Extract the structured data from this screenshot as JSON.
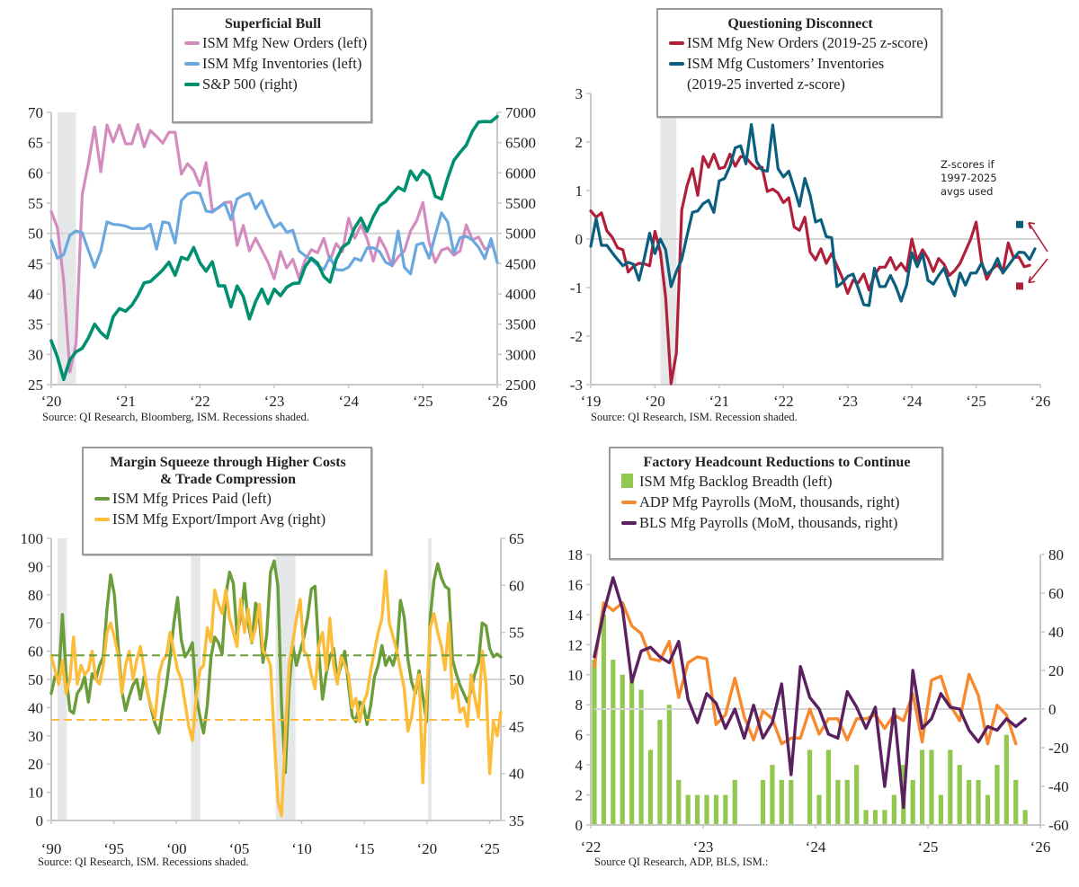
{
  "chart_data": [
    {
      "id": "superficial-bull",
      "type": "line",
      "title": "Superficial Bull",
      "source": "Source: QI Research, Bloomberg, ISM. Recessions shaded.",
      "x_start": "2020-01",
      "frequency": "monthly",
      "xticks": [
        "‘20",
        "‘21",
        "‘22",
        "‘23",
        "‘24",
        "‘25",
        "‘26"
      ],
      "x_range_years": [
        2020,
        2026
      ],
      "ylim_left": [
        25,
        70
      ],
      "yticks_left": [
        "25",
        "30",
        "35",
        "40",
        "45",
        "50",
        "55",
        "60",
        "65",
        "70"
      ],
      "ylim_right": [
        2500,
        7000
      ],
      "yticks_right": [
        "2500",
        "3000",
        "3500",
        "4000",
        "4500",
        "5000",
        "5500",
        "6000",
        "6500",
        "7000"
      ],
      "reference_line_left": 50,
      "recessions": [
        [
          "2020-02",
          "2020-04"
        ]
      ],
      "legend_position": "top-center",
      "series": [
        {
          "name": "ISM Mfg New Orders (left)",
          "axis": "left",
          "color": "#d48bc0",
          "values": [
            53.6,
            50.9,
            42.2,
            27.1,
            31.8,
            56.4,
            61.5,
            67.6,
            60.2,
            67.9,
            65.1,
            67.9,
            64.8,
            64.8,
            68.0,
            64.3,
            67.0,
            66.0,
            64.9,
            66.7,
            66.7,
            59.8,
            61.5,
            60.4,
            57.9,
            61.7,
            53.8,
            54.2,
            55.1,
            55.2,
            48.0,
            51.3,
            47.1,
            49.2,
            47.2,
            45.2,
            42.5,
            47.0,
            44.3,
            45.7,
            42.6,
            45.6,
            47.3,
            46.8,
            49.2,
            45.5,
            48.3,
            47.0,
            52.5,
            49.2,
            51.4,
            49.1,
            45.4,
            49.3,
            47.4,
            44.6,
            46.1,
            47.1,
            50.4,
            52.1,
            55.1,
            48.6,
            45.2,
            47.2,
            47.6,
            46.4,
            47.1,
            51.4,
            48.9,
            49.4,
            47.4,
            47.9
          ],
          "last_value": 47.9
        },
        {
          "name": "ISM Mfg Inventories (left)",
          "axis": "left",
          "color": "#6aa8df",
          "values": [
            48.8,
            45.9,
            46.5,
            49.7,
            50.4,
            50.1,
            47.2,
            44.4,
            47.1,
            51.9,
            51.5,
            51.4,
            51.2,
            50.8,
            50.8,
            50.8,
            51.5,
            47.4,
            51.9,
            51.7,
            48.4,
            55.4,
            56.5,
            56.8,
            56.6,
            53.7,
            53.5,
            54.3,
            55.0,
            52.3,
            55.7,
            56.3,
            56.6,
            54.1,
            55.4,
            53.0,
            51.0,
            51.7,
            50.2,
            50.5,
            47.1,
            46.3,
            45.7,
            44.7,
            44.0,
            46.1,
            44.0,
            43.9,
            44.4,
            45.9,
            45.5,
            47.6,
            47.6,
            47.0,
            45.2,
            44.7,
            50.4,
            44.4,
            43.3,
            48.1,
            48.4,
            45.9,
            49.7,
            53.4,
            51.9,
            46.7,
            49.3,
            49.5,
            48.9,
            47.7,
            45.8,
            49.1,
            45.2
          ],
          "last_value": 45.2
        },
        {
          "name": "S&P 500 (right)",
          "axis": "right",
          "color": "#009070",
          "values": [
            3225,
            2954,
            2585,
            2912,
            3044,
            3100,
            3271,
            3500,
            3363,
            3270,
            3622,
            3756,
            3714,
            3811,
            3973,
            4181,
            4204,
            4298,
            4395,
            4523,
            4308,
            4605,
            4567,
            4766,
            4516,
            4374,
            4530,
            4132,
            4132,
            3785,
            4130,
            3955,
            3586,
            3872,
            4080,
            3840,
            4077,
            3970,
            4109,
            4169,
            4180,
            4450,
            4589,
            4508,
            4288,
            4194,
            4568,
            4770,
            4846,
            5096,
            5254,
            5036,
            5278,
            5460,
            5522,
            5648,
            5762,
            5705,
            6032,
            5882,
            6040,
            5955,
            5612,
            5569,
            5912,
            6205,
            6339,
            6460,
            6688,
            6840,
            6849,
            6845,
            6930
          ],
          "last_value": 6930
        }
      ]
    },
    {
      "id": "questioning-disconnect",
      "type": "line",
      "title": "Questioning Disconnect",
      "source": "Source: QI Research, ISM. Recession shaded.",
      "x_start": "2019-01",
      "frequency": "monthly",
      "xticks": [
        "‘19",
        "‘20",
        "‘21",
        "‘22",
        "‘23",
        "‘24",
        "‘25",
        "‘26"
      ],
      "x_range_years": [
        2019,
        2026
      ],
      "ylim": [
        -3,
        3
      ],
      "yticks": [
        "-3",
        "-2",
        "-1",
        "0",
        "1",
        "2",
        "3"
      ],
      "reference_line": 0,
      "recessions": [
        [
          "2020-02",
          "2020-04"
        ]
      ],
      "legend_position": "top-center",
      "annotation": "Z-scores if 1997-2025 avgs used",
      "alt_markers": [
        {
          "series": "ISM Mfg Customers’ Inventories (2019-25 inverted z-score)",
          "value": 0.3,
          "color": "#0b5f7e"
        },
        {
          "series": "ISM Mfg New Orders (2019-25 z-score)",
          "value": -0.97,
          "color": "#b0203a"
        }
      ],
      "series": [
        {
          "name": "ISM Mfg New Orders (2019-25 z-score)",
          "color": "#b0203a",
          "values": [
            0.58,
            0.45,
            0.54,
            0.17,
            0.04,
            -0.18,
            -0.22,
            -0.68,
            -0.56,
            -0.5,
            -0.51,
            -0.55,
            0.16,
            -0.27,
            -1.2,
            -2.98,
            -2.35,
            0.6,
            1.1,
            1.45,
            0.9,
            1.7,
            1.48,
            1.75,
            1.45,
            1.48,
            1.75,
            1.5,
            1.7,
            1.68,
            1.55,
            1.45,
            1.48,
            0.98,
            1.03,
            0.95,
            0.75,
            0.85,
            0.25,
            0.18,
            0.45,
            -0.27,
            -0.43,
            -0.2,
            -0.5,
            -0.3,
            -0.55,
            -0.8,
            -1.12,
            -0.85,
            -0.9,
            -0.72,
            -1.05,
            -0.75,
            -0.58,
            -0.58,
            -0.38,
            -0.63,
            -0.5,
            -0.66,
            0.0,
            -0.45,
            -0.22,
            -0.4,
            -0.67,
            -0.4,
            -0.52,
            -0.75,
            -0.65,
            -0.5,
            -0.25,
            0.0,
            0.35,
            -0.46,
            -0.83,
            -0.62,
            -0.53,
            -0.68,
            -0.08,
            -0.38,
            -0.37,
            -0.57,
            -0.54
          ]
        },
        {
          "name": "ISM Mfg Customers’ Inventories (2019-25 inverted z-score)",
          "color": "#0b5f7e",
          "values": [
            -0.15,
            0.42,
            -0.13,
            -0.13,
            -0.28,
            -0.42,
            -0.55,
            -0.48,
            -0.52,
            -0.85,
            -0.4,
            0.12,
            -0.3,
            0.0,
            -0.22,
            -0.98,
            -0.67,
            -0.42,
            0.07,
            0.55,
            0.58,
            0.73,
            0.8,
            0.55,
            1.2,
            1.25,
            1.5,
            1.88,
            1.92,
            1.55,
            2.36,
            1.6,
            1.42,
            1.4,
            2.35,
            1.45,
            1.28,
            1.4,
            1.05,
            0.68,
            1.25,
            0.9,
            0.35,
            0.4,
            0.05,
            0.03,
            -0.98,
            -0.9,
            -0.77,
            -0.72,
            -1.02,
            -1.35,
            -1.37,
            -0.6,
            -0.98,
            -0.98,
            -0.75,
            -0.98,
            -1.28,
            -0.95,
            -0.28,
            -0.57,
            -0.3,
            -0.85,
            -0.93,
            -0.75,
            -0.6,
            -0.92,
            -1.17,
            -0.7,
            -0.95,
            -0.7,
            -0.7,
            -0.5,
            -0.73,
            -0.63,
            -0.4,
            -0.7,
            -0.55,
            -0.4,
            -0.27,
            -0.28,
            -0.42,
            -0.2
          ]
        }
      ]
    },
    {
      "id": "margin-squeeze",
      "type": "line",
      "title": "Margin Squeeze through Higher Costs & Trade Compression",
      "title_lines": [
        "Margin Squeeze through Higher Costs",
        "& Trade Compression"
      ],
      "source": "Source: QI Research, ISM. Recessions shaded.",
      "x_start": "1990-01",
      "frequency": "quarterly",
      "xticks": [
        "‘90",
        "‘95",
        "‘00",
        "‘05",
        "‘10",
        "‘15",
        "‘20",
        "‘25"
      ],
      "x_range_years": [
        1990,
        2025.9
      ],
      "ylim_left": [
        0,
        100
      ],
      "yticks_left": [
        "0",
        "10",
        "20",
        "30",
        "40",
        "50",
        "60",
        "70",
        "80",
        "90",
        "100"
      ],
      "ylim_right": [
        35,
        65
      ],
      "yticks_right": [
        "35",
        "40",
        "45",
        "50",
        "55",
        "60",
        "65"
      ],
      "reference_line_left": 50,
      "dashed_average_left": 58.5,
      "dashed_average_right": 45.7,
      "recessions": [
        [
          "1990-07",
          "1991-03"
        ],
        [
          "2001-03",
          "2001-11"
        ],
        [
          "2007-12",
          "2009-06"
        ],
        [
          "2020-02",
          "2020-04"
        ]
      ],
      "legend_position": "top-center",
      "series": [
        {
          "name": "ISM Mfg Prices Paid (left)",
          "axis": "left",
          "color": "#6b9d3a",
          "dashed_average": 58.5,
          "values": [
            45,
            51,
            50,
            73,
            52,
            39,
            38,
            45,
            47,
            51,
            42,
            52,
            50,
            55,
            58,
            75,
            87,
            80,
            62,
            46,
            39,
            44,
            48,
            50,
            43,
            51,
            45,
            39,
            34,
            31,
            40,
            48,
            58,
            70,
            79,
            64,
            58,
            60,
            63,
            44,
            37,
            31,
            41,
            58,
            65,
            63,
            59,
            80,
            88,
            84,
            66,
            72,
            84,
            70,
            63,
            77,
            72,
            56,
            66,
            88,
            92,
            83,
            40,
            17,
            47,
            62,
            55,
            60,
            65,
            72,
            82,
            83,
            60,
            43,
            52,
            58,
            61,
            50,
            55,
            60,
            48,
            37,
            35,
            42,
            41,
            34,
            41,
            51,
            55,
            62,
            55,
            58,
            55,
            60,
            78,
            72,
            57,
            49,
            45,
            53,
            44,
            35,
            72,
            85,
            91,
            86,
            83,
            82,
            57,
            52,
            48,
            45,
            42,
            46,
            52,
            56,
            70,
            69,
            61,
            58,
            59,
            58
          ]
        },
        {
          "name": "ISM Mfg Export/Import Avg (right)",
          "axis": "right",
          "color": "#fbbd3a",
          "dashed_average": 45.7,
          "values": [
            52.5,
            51.0,
            49.5,
            52.0,
            48.5,
            50.0,
            54.5,
            49.5,
            51.5,
            50.5,
            51.0,
            53.0,
            50.0,
            49.5,
            51.5,
            55.0,
            56.0,
            54.5,
            52.5,
            48.5,
            51.5,
            53.0,
            50.0,
            52.0,
            53.5,
            51.0,
            48.5,
            47.0,
            46.0,
            50.5,
            52.0,
            52.5,
            55.0,
            53.0,
            51.0,
            50.0,
            47.5,
            45.0,
            43.5,
            48.0,
            51.0,
            51.5,
            55.5,
            54.0,
            59.5,
            58.0,
            57.0,
            59.5,
            56.5,
            55.0,
            53.5,
            58.5,
            55.0,
            57.5,
            54.0,
            55.5,
            58.0,
            53.0,
            52.5,
            51.5,
            44.0,
            37.0,
            35.5,
            44.0,
            51.5,
            54.0,
            56.5,
            58.5,
            53.0,
            52.5,
            50.5,
            49.0,
            53.5,
            55.0,
            51.0,
            56.5,
            51.5,
            49.5,
            52.5,
            51.5,
            50.5,
            47.0,
            48.0,
            45.5,
            47.5,
            48.5,
            51.0,
            53.0,
            55.0,
            56.5,
            61.5,
            56.0,
            54.5,
            53.0,
            51.0,
            49.0,
            44.5,
            46.0,
            49.0,
            50.5,
            39.0,
            48.0,
            55.5,
            57.0,
            55.0,
            53.5,
            51.0,
            56.0,
            48.0,
            49.5,
            46.5,
            47.0,
            45.0,
            50.5,
            48.0,
            46.0,
            53.0,
            49.5,
            40.0,
            45.5,
            44.0,
            46.5
          ]
        }
      ]
    },
    {
      "id": "factory-headcount",
      "type": "bar",
      "title": "Factory Headcount Reductions to Continue",
      "source": "Source QI Research, ADP, BLS, ISM.:",
      "x_start": "2022-01",
      "frequency": "monthly",
      "xticks": [
        "‘22",
        "‘23",
        "‘24",
        "‘25",
        "‘26"
      ],
      "x_range_years": [
        2022,
        2026
      ],
      "ylim_left": [
        0,
        18
      ],
      "yticks_left": [
        "0",
        "2",
        "4",
        "6",
        "8",
        "10",
        "12",
        "14",
        "16",
        "18"
      ],
      "ylim_right": [
        -60,
        80
      ],
      "yticks_right": [
        "-60",
        "-40",
        "-20",
        "0",
        "20",
        "40",
        "60",
        "80"
      ],
      "reference_line_right": 0,
      "legend_position": "top-center",
      "series": [
        {
          "name": "ISM Mfg Backlog Breadth (left)",
          "type": "bar",
          "axis": "left",
          "color": "#92c850",
          "values": [
            11,
            14,
            11,
            10,
            10,
            9,
            5,
            7,
            8,
            3,
            2,
            2,
            2,
            2,
            2,
            3,
            0,
            0,
            3,
            4,
            3,
            3,
            0,
            5,
            2,
            5,
            3,
            3,
            4,
            1,
            1,
            1,
            2,
            4,
            3,
            5,
            5,
            2,
            5,
            4,
            3,
            3,
            2,
            4,
            6,
            3,
            1
          ]
        },
        {
          "name": "ADP Mfg Payrolls (MoM, thousands, right)",
          "type": "line",
          "axis": "right",
          "color": "#f7892f",
          "values": [
            22,
            55,
            51,
            55,
            43,
            39,
            26,
            25,
            35,
            6,
            24,
            27,
            26,
            -8,
            -3,
            16,
            -4,
            -16,
            -1,
            -5,
            -18,
            -15,
            -15,
            0,
            -13,
            -5,
            -5,
            -16,
            -5,
            -5,
            -3,
            -10,
            -3,
            -6,
            8,
            -17,
            15,
            17,
            2,
            -6,
            18,
            7,
            -18,
            2,
            -3,
            -18
          ]
        },
        {
          "name": "BLS Mfg Payrolls (MoM, thousands, right)",
          "type": "line",
          "axis": "right",
          "color": "#5a2060",
          "values": [
            27,
            50,
            68,
            52,
            14,
            30,
            32,
            27,
            24,
            35,
            5,
            -7,
            8,
            3,
            -10,
            0,
            -15,
            2,
            -15,
            -7,
            13,
            -34,
            22,
            6,
            0,
            -13,
            -15,
            9,
            1,
            -10,
            1,
            -40,
            0,
            -51,
            20,
            -10,
            -5,
            8,
            1,
            0,
            -11,
            -17,
            -9,
            -11,
            -5,
            -9,
            -5
          ]
        }
      ]
    }
  ]
}
